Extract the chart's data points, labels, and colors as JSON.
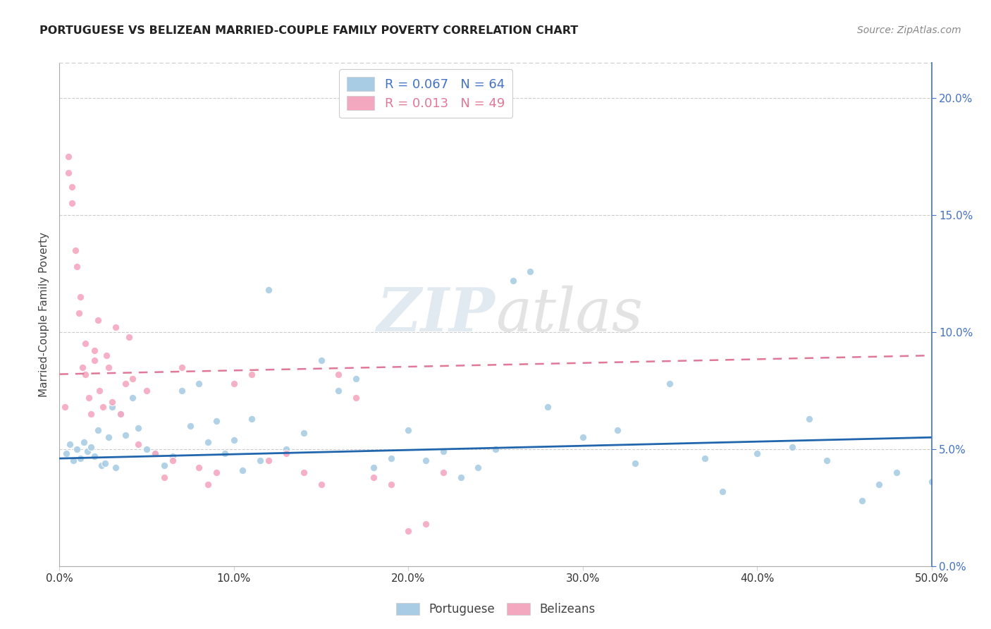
{
  "title": "PORTUGUESE VS BELIZEAN MARRIED-COUPLE FAMILY POVERTY CORRELATION CHART",
  "source": "Source: ZipAtlas.com",
  "ylabel": "Married-Couple Family Poverty",
  "watermark": "ZIPatlas",
  "portuguese_color": "#a8cce4",
  "belizeans_color": "#f4a8c0",
  "portuguese_line_color": "#2166ac",
  "belizeans_line_color": "#e07898",
  "right_axis_color": "#4472c4",
  "port_R": 0.067,
  "port_N": 64,
  "bel_R": 0.013,
  "bel_N": 49,
  "portuguese_x": [
    0.4,
    0.6,
    0.8,
    1.0,
    1.2,
    1.4,
    1.6,
    1.8,
    2.0,
    2.2,
    2.4,
    2.6,
    2.8,
    3.0,
    3.2,
    3.5,
    3.8,
    4.2,
    4.5,
    5.0,
    5.5,
    6.0,
    6.5,
    7.0,
    7.5,
    8.0,
    8.5,
    9.0,
    9.5,
    10.0,
    10.5,
    11.0,
    11.5,
    12.0,
    13.0,
    14.0,
    15.0,
    16.0,
    17.0,
    18.0,
    19.0,
    20.0,
    21.0,
    22.0,
    23.0,
    24.0,
    25.0,
    26.0,
    27.0,
    28.0,
    30.0,
    32.0,
    33.0,
    35.0,
    37.0,
    38.0,
    40.0,
    42.0,
    43.0,
    44.0,
    46.0,
    47.0,
    48.0,
    50.0
  ],
  "portuguese_y": [
    4.8,
    5.2,
    4.5,
    5.0,
    4.6,
    5.3,
    4.9,
    5.1,
    4.7,
    5.8,
    4.3,
    4.4,
    5.5,
    6.8,
    4.2,
    6.5,
    5.6,
    7.2,
    5.9,
    5.0,
    4.8,
    4.3,
    4.7,
    7.5,
    6.0,
    7.8,
    5.3,
    6.2,
    4.8,
    5.4,
    4.1,
    6.3,
    4.5,
    11.8,
    5.0,
    5.7,
    8.8,
    7.5,
    8.0,
    4.2,
    4.6,
    5.8,
    4.5,
    4.9,
    3.8,
    4.2,
    5.0,
    12.2,
    12.6,
    6.8,
    5.5,
    5.8,
    4.4,
    7.8,
    4.6,
    3.2,
    4.8,
    5.1,
    6.3,
    4.5,
    2.8,
    3.5,
    4.0,
    3.6
  ],
  "belizeans_x": [
    0.3,
    0.5,
    0.5,
    0.7,
    0.7,
    0.9,
    1.0,
    1.1,
    1.2,
    1.3,
    1.5,
    1.5,
    1.7,
    1.8,
    2.0,
    2.0,
    2.2,
    2.3,
    2.5,
    2.7,
    2.8,
    3.0,
    3.2,
    3.5,
    3.8,
    4.0,
    4.2,
    4.5,
    5.0,
    5.5,
    6.0,
    6.5,
    7.0,
    8.0,
    8.5,
    9.0,
    10.0,
    11.0,
    12.0,
    13.0,
    14.0,
    15.0,
    16.0,
    17.0,
    18.0,
    19.0,
    20.0,
    21.0,
    22.0
  ],
  "belizeans_y": [
    6.8,
    16.8,
    17.5,
    15.5,
    16.2,
    13.5,
    12.8,
    10.8,
    11.5,
    8.5,
    8.2,
    9.5,
    7.2,
    6.5,
    8.8,
    9.2,
    10.5,
    7.5,
    6.8,
    9.0,
    8.5,
    7.0,
    10.2,
    6.5,
    7.8,
    9.8,
    8.0,
    5.2,
    7.5,
    4.8,
    3.8,
    4.5,
    8.5,
    4.2,
    3.5,
    4.0,
    7.8,
    8.2,
    4.5,
    4.8,
    4.0,
    3.5,
    8.2,
    7.2,
    3.8,
    3.5,
    1.5,
    1.8,
    4.0
  ],
  "port_line_x0": 0,
  "port_line_x1": 50,
  "port_line_y0": 4.6,
  "port_line_y1": 5.5,
  "bel_line_x0": 0,
  "bel_line_x1": 50,
  "bel_line_y0": 8.2,
  "bel_line_y1": 9.0,
  "xlim": [
    0,
    50
  ],
  "ylim": [
    0,
    21.5
  ],
  "ytick_vals": [
    0,
    5,
    10,
    15,
    20
  ],
  "ytick_labels": [
    "0.0%",
    "5.0%",
    "10.0%",
    "15.0%",
    "20.0%"
  ],
  "xtick_vals": [
    0,
    10,
    20,
    30,
    40,
    50
  ],
  "xtick_labels": [
    "0.0%",
    "10.0%",
    "20.0%",
    "30.0%",
    "40.0%",
    "50.0%"
  ]
}
